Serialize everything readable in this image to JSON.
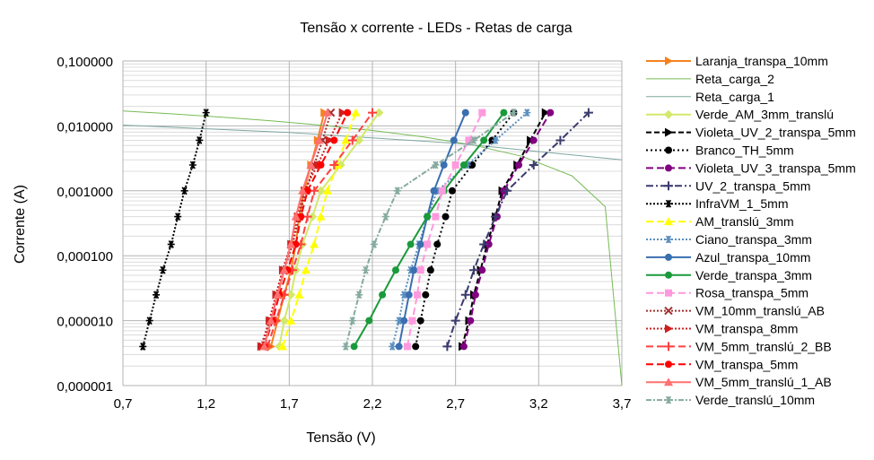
{
  "chart_data": {
    "type": "line",
    "title": "Tensão x corrente - LEDs - Retas de carga",
    "xlabel": "Tensão (V)",
    "ylabel": "Corrente (A)",
    "xlim": [
      0.7,
      3.7
    ],
    "ylim": [
      1e-06,
      0.1
    ],
    "y_scale": "log",
    "grid": true,
    "legend_position": "right",
    "x_ticks": [
      "0,7",
      "1,2",
      "1,7",
      "2,2",
      "2,7",
      "3,2",
      "3,7"
    ],
    "y_ticks": [
      "0,100000",
      "0,010000",
      "0,001000",
      "0,000100",
      "0,000010",
      "0,000001"
    ],
    "led_current": [
      4e-06,
      1e-05,
      2.5e-05,
      6e-05,
      0.00015,
      0.0004,
      0.001,
      0.0025,
      0.006,
      0.016
    ],
    "series": [
      {
        "name": "Laranja_transpa_10mm",
        "color": "#f5821f",
        "dash": "",
        "marker": "triangle-right",
        "x": [
          1.59,
          1.63,
          1.67,
          1.71,
          1.74,
          1.76,
          1.79,
          1.83,
          1.87,
          1.91
        ]
      },
      {
        "name": "Reta_carga_2",
        "color": "#77bb55",
        "dash": "",
        "marker": "none",
        "x": [
          0.7,
          1.0,
          1.3,
          1.6,
          1.9,
          2.2,
          2.5,
          2.8,
          3.1,
          3.4,
          3.6,
          3.7
        ],
        "y": [
          0.017,
          0.0153,
          0.0136,
          0.0119,
          0.0102,
          0.0085,
          0.0068,
          0.0051,
          0.0034,
          0.0017,
          0.00057,
          1e-06
        ]
      },
      {
        "name": "Reta_carga_1",
        "color": "#7fa7a0",
        "dash": "",
        "marker": "none",
        "x": [
          0.7,
          1.7,
          2.7,
          3.7
        ],
        "y": [
          0.0103,
          0.0079,
          0.0054,
          0.003
        ]
      },
      {
        "name": "Verde_AM_3mm_translú",
        "color": "#d4e86a",
        "dash": "",
        "marker": "diamond",
        "x": [
          1.64,
          1.67,
          1.71,
          1.74,
          1.78,
          1.84,
          1.89,
          2.01,
          2.12,
          2.24
        ]
      },
      {
        "name": "Violeta_UV_2_transpa_5mm",
        "color": "#000000",
        "dash": "6,3",
        "marker": "triangle-right",
        "x": [
          2.74,
          2.78,
          2.81,
          2.85,
          2.89,
          2.94,
          2.98,
          3.07,
          3.15,
          3.24
        ]
      },
      {
        "name": "Branco_TH_5mm",
        "color": "#000000",
        "dash": "2,3",
        "marker": "circle",
        "x": [
          2.46,
          2.49,
          2.52,
          2.55,
          2.59,
          2.64,
          2.68,
          2.8,
          2.92,
          3.05
        ]
      },
      {
        "name": "Violeta_UV_3_transpa_5mm",
        "color": "#800080",
        "dash": "8,4",
        "marker": "circle",
        "x": [
          2.75,
          2.79,
          2.82,
          2.86,
          2.9,
          2.95,
          2.99,
          3.08,
          3.17,
          3.27
        ]
      },
      {
        "name": "UV_2_transpa_5mm",
        "color": "#3b3b6e",
        "dash": "8,3,2,3",
        "marker": "plus",
        "x": [
          2.65,
          2.7,
          2.76,
          2.81,
          2.87,
          2.94,
          3.01,
          3.17,
          3.33,
          3.5
        ]
      },
      {
        "name": "InfraVM_1_5mm",
        "color": "#000000",
        "dash": "2,2",
        "marker": "asterisk",
        "x": [
          0.82,
          0.86,
          0.9,
          0.94,
          0.99,
          1.03,
          1.07,
          1.12,
          1.16,
          1.2
        ]
      },
      {
        "name": "AM_translú_3mm",
        "color": "#ffff00",
        "dash": "8,4",
        "marker": "triangle",
        "x": [
          1.66,
          1.71,
          1.76,
          1.8,
          1.85,
          1.89,
          1.93,
          1.99,
          2.04,
          2.1
        ]
      },
      {
        "name": "Ciano_transpa_3mm",
        "color": "#5b8fbf",
        "dash": "2,2",
        "marker": "asterisk",
        "x": [
          2.32,
          2.36,
          2.39,
          2.43,
          2.48,
          2.53,
          2.59,
          2.77,
          2.94,
          3.13
        ]
      },
      {
        "name": "Azul_transpa_10mm",
        "color": "#3a6fb0",
        "dash": "",
        "marker": "circle",
        "x": [
          2.36,
          2.39,
          2.42,
          2.45,
          2.49,
          2.53,
          2.57,
          2.63,
          2.69,
          2.76
        ]
      },
      {
        "name": "Verde_transpa_3mm",
        "color": "#1a9a3a",
        "dash": "",
        "marker": "circle",
        "x": [
          2.09,
          2.18,
          2.26,
          2.34,
          2.43,
          2.53,
          2.63,
          2.75,
          2.87,
          2.99
        ]
      },
      {
        "name": "Rosa_transpa_5mm",
        "color": "#ff99dd",
        "dash": "8,4",
        "marker": "square",
        "x": [
          2.41,
          2.44,
          2.47,
          2.49,
          2.53,
          2.58,
          2.62,
          2.7,
          2.78,
          2.86
        ]
      },
      {
        "name": "VM_10mm_translú_AB",
        "color": "#a03030",
        "dash": "2,2",
        "marker": "x",
        "x": [
          1.54,
          1.59,
          1.63,
          1.67,
          1.72,
          1.76,
          1.8,
          1.85,
          1.9,
          1.95
        ]
      },
      {
        "name": "VM_transpa_8mm",
        "color": "#cc2020",
        "dash": "2,2",
        "marker": "triangle-right",
        "x": [
          1.53,
          1.58,
          1.62,
          1.66,
          1.71,
          1.75,
          1.79,
          1.87,
          1.94,
          2.02
        ]
      },
      {
        "name": "VM_5mm_translú_2_BB",
        "color": "#ff4040",
        "dash": "8,4",
        "marker": "plus",
        "x": [
          1.57,
          1.62,
          1.67,
          1.72,
          1.77,
          1.81,
          1.85,
          1.97,
          2.08,
          2.2
        ]
      },
      {
        "name": "VM_transpa_5mm",
        "color": "#ff0000",
        "dash": "8,4",
        "marker": "circle",
        "x": [
          1.55,
          1.6,
          1.64,
          1.69,
          1.74,
          1.77,
          1.81,
          1.89,
          1.97,
          2.05
        ]
      },
      {
        "name": "VM_5mm_translú_1_AB",
        "color": "#ff7070",
        "dash": "",
        "marker": "triangle",
        "x": [
          1.55,
          1.59,
          1.63,
          1.67,
          1.71,
          1.74,
          1.78,
          1.83,
          1.88,
          1.93
        ]
      },
      {
        "name": "Verde_translú_10mm",
        "color": "#86aaa0",
        "dash": "6,2,2,2",
        "marker": "asterisk",
        "x": [
          2.04,
          2.08,
          2.12,
          2.16,
          2.21,
          2.28,
          2.35,
          2.58,
          2.81,
          3.05
        ]
      }
    ]
  }
}
